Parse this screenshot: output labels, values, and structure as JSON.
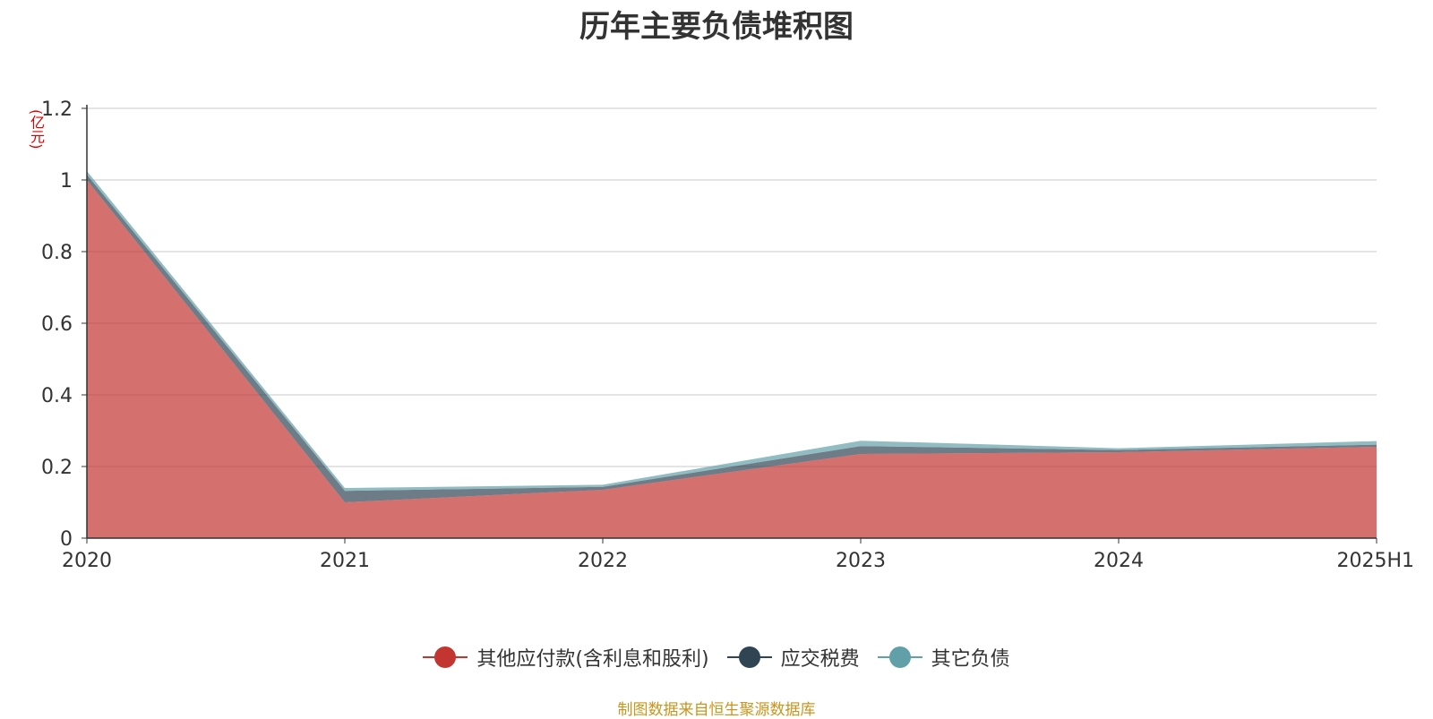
{
  "title": "历年主要负债堆积图",
  "unit_label": "(亿元)",
  "source_text": "制图数据来自恒生聚源数据库",
  "chart_data": {
    "type": "area",
    "stacked": true,
    "title": "历年主要负债堆积图",
    "ylabel": "(亿元)",
    "x": [
      "2020",
      "2021",
      "2022",
      "2023",
      "2024",
      "2025H1"
    ],
    "ylim": [
      0,
      1.2
    ],
    "yticks": [
      "0",
      "0.2",
      "0.4",
      "0.6",
      "0.8",
      "1",
      "1.2"
    ],
    "grid": true,
    "legend_position": "bottom",
    "series": [
      {
        "name": "其他应付款(含利息和股利)",
        "color": "#c23531",
        "values": [
          1.0,
          0.1,
          0.135,
          0.235,
          0.24,
          0.255
        ]
      },
      {
        "name": "应交税费",
        "color": "#2f4554",
        "values": [
          0.015,
          0.032,
          0.008,
          0.022,
          0.006,
          0.006
        ]
      },
      {
        "name": "其它负债",
        "color": "#61a0a8",
        "values": [
          0.01,
          0.008,
          0.006,
          0.015,
          0.005,
          0.01
        ]
      }
    ]
  }
}
